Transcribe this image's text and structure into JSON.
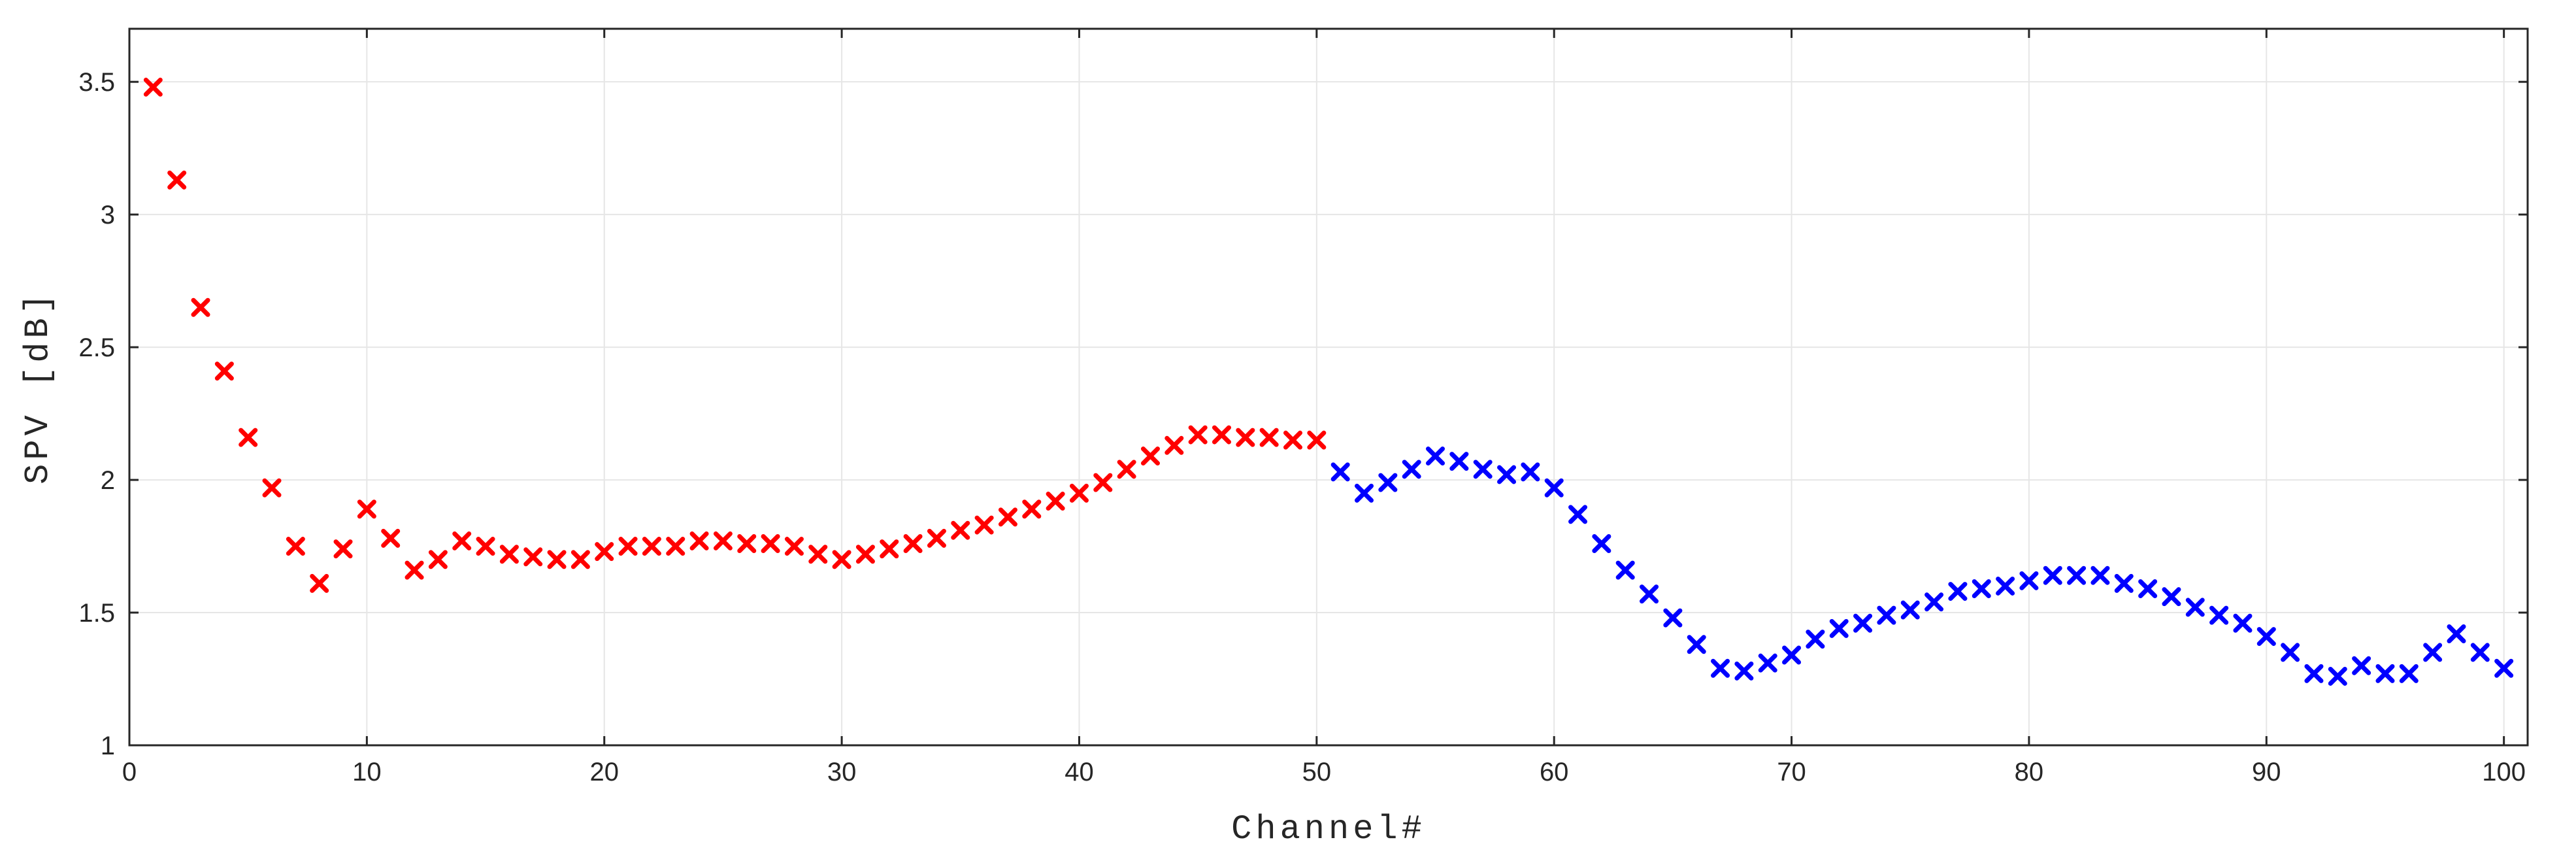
{
  "chart_data": {
    "type": "scatter",
    "title": "",
    "xlabel": "Channel#",
    "ylabel": "SPV [dB]",
    "xlim": [
      0,
      101
    ],
    "ylim": [
      1,
      3.7
    ],
    "xticks": [
      0,
      10,
      20,
      30,
      40,
      50,
      60,
      70,
      80,
      90,
      100
    ],
    "yticks": [
      1,
      1.5,
      2,
      2.5,
      3,
      3.5
    ],
    "xtick_labels": [
      "0",
      "10",
      "20",
      "30",
      "40",
      "50",
      "60",
      "70",
      "80",
      "90",
      "100"
    ],
    "ytick_labels": [
      "1",
      "1.5",
      "2",
      "2.5",
      "3",
      "3.5"
    ],
    "grid": true,
    "marker": "x",
    "series": [
      {
        "color": "#ff0000",
        "x": [
          1,
          2,
          3,
          4,
          5,
          6,
          7,
          8,
          9,
          10,
          11,
          12,
          13,
          14,
          15,
          16,
          17,
          18,
          19,
          20,
          21,
          22,
          23,
          24,
          25,
          26,
          27,
          28,
          29,
          30,
          31,
          32,
          33,
          34,
          35,
          36,
          37,
          38,
          39,
          40,
          41,
          42,
          43,
          44,
          45,
          46,
          47,
          48,
          49,
          50
        ],
        "y": [
          3.48,
          3.13,
          2.65,
          2.41,
          2.16,
          1.97,
          1.75,
          1.61,
          1.74,
          1.89,
          1.78,
          1.66,
          1.7,
          1.77,
          1.75,
          1.72,
          1.71,
          1.7,
          1.7,
          1.73,
          1.75,
          1.75,
          1.75,
          1.77,
          1.77,
          1.76,
          1.76,
          1.75,
          1.72,
          1.7,
          1.72,
          1.74,
          1.76,
          1.78,
          1.81,
          1.83,
          1.86,
          1.89,
          1.92,
          1.95,
          1.99,
          2.04,
          2.09,
          2.13,
          2.17,
          2.17,
          2.16,
          2.16,
          2.15,
          2.15
        ]
      },
      {
        "color": "#0000ff",
        "x": [
          51,
          52,
          53,
          54,
          55,
          56,
          57,
          58,
          59,
          60,
          61,
          62,
          63,
          64,
          65,
          66,
          67,
          68,
          69,
          70,
          71,
          72,
          73,
          74,
          75,
          76,
          77,
          78,
          79,
          80,
          81,
          82,
          83,
          84,
          85,
          86,
          87,
          88,
          89,
          90,
          91,
          92,
          93,
          94,
          95,
          96,
          97,
          98,
          99,
          100
        ],
        "y": [
          2.03,
          1.95,
          1.99,
          2.04,
          2.09,
          2.07,
          2.04,
          2.02,
          2.03,
          1.97,
          1.87,
          1.76,
          1.66,
          1.57,
          1.48,
          1.38,
          1.29,
          1.28,
          1.31,
          1.34,
          1.4,
          1.44,
          1.46,
          1.49,
          1.51,
          1.54,
          1.58,
          1.59,
          1.6,
          1.62,
          1.64,
          1.64,
          1.64,
          1.61,
          1.59,
          1.56,
          1.52,
          1.49,
          1.46,
          1.41,
          1.35,
          1.27,
          1.26,
          1.3,
          1.27,
          1.27,
          1.35,
          1.42,
          1.35,
          1.29
        ]
      }
    ]
  }
}
